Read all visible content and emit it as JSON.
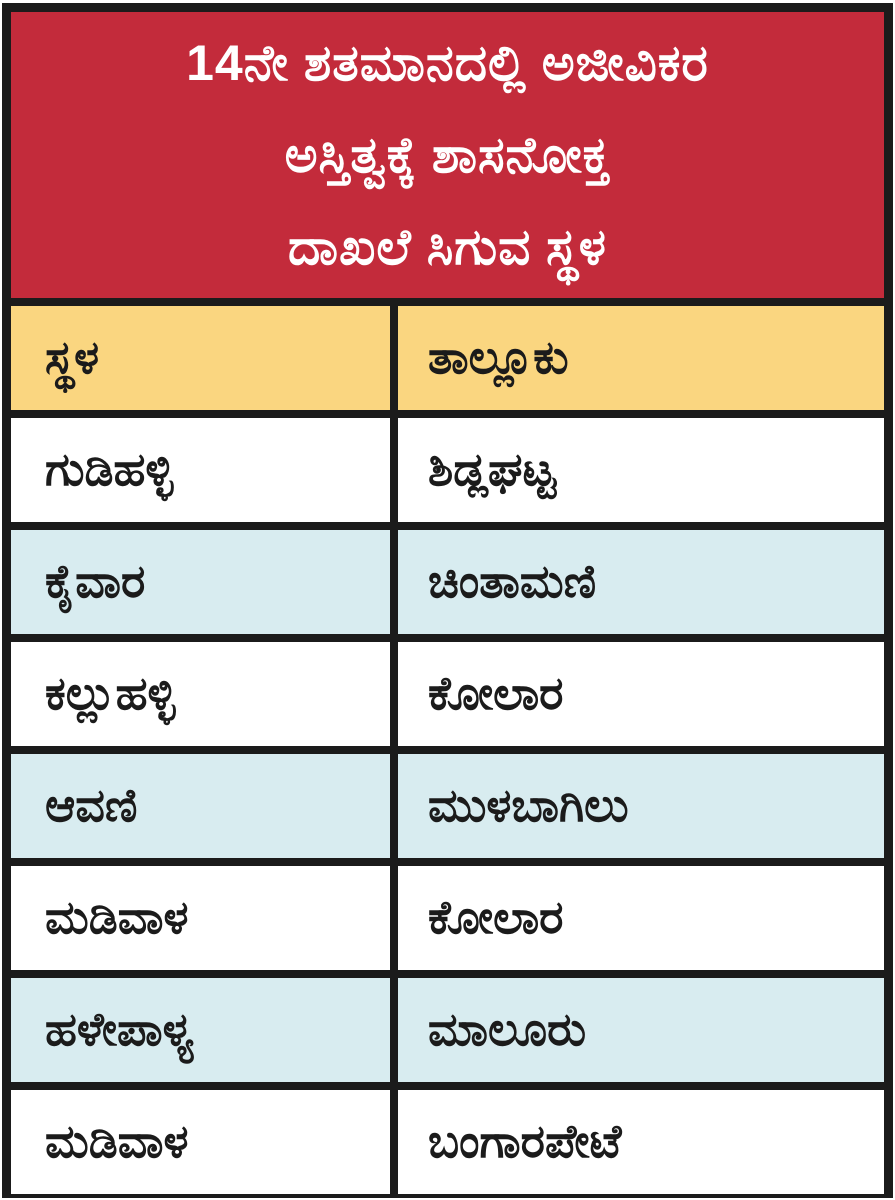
{
  "title": {
    "lines": [
      "14ನೇ ಶತಮಾನದಲ್ಲಿ ಅಜೀವಿಕರ",
      "ಅಸ್ತಿತ್ವಕ್ಕೆ ಶಾಸನೋಕ್ತ",
      "ದಾಖಲೆ ಸಿಗುವ ಸ್ಥಳ"
    ]
  },
  "chart_data": {
    "type": "table",
    "title": "14ನೇ ಶತಮಾನದಲ್ಲಿ ಅಜೀವಿಕರ ಅಸ್ತಿತ್ವಕ್ಕೆ ಶಾಸನೋಕ್ತ ದಾಖಲೆ ಸಿಗುವ ಸ್ಥಳ",
    "columns": [
      "ಸ್ಥಳ",
      "ತಾಲ್ಲೂಕು"
    ],
    "rows": [
      [
        "ಗುಡಿಹಳ್ಳಿ",
        "ಶಿಡ್ಲಘಟ್ಟ"
      ],
      [
        "ಕೈವಾರ",
        "ಚಿಂತಾಮಣಿ"
      ],
      [
        "ಕಲ್ಲುಹಳ್ಳಿ",
        "ಕೋಲಾರ"
      ],
      [
        "ಆವಣಿ",
        "ಮುಳಬಾಗಿಲು"
      ],
      [
        "ಮಡಿವಾಳ",
        "ಕೋಲಾರ"
      ],
      [
        "ಹಳೇಪಾಳ್ಯ",
        "ಮಾಲೂರು"
      ],
      [
        "ಮಡಿವಾಳ",
        "ಬಂಗಾರಪೇಟೆ"
      ]
    ],
    "layout": {
      "header_fill": "yellow",
      "row_fills_alternate": [
        "white",
        "light-blue"
      ],
      "grid_lines": "on"
    }
  },
  "colors": {
    "banner_red": "#c32b3b",
    "header_yellow": "#fad680",
    "row_blue": "#d8ecf0",
    "border_ink": "#1b1b1b",
    "banner_text": "#ffffff"
  }
}
